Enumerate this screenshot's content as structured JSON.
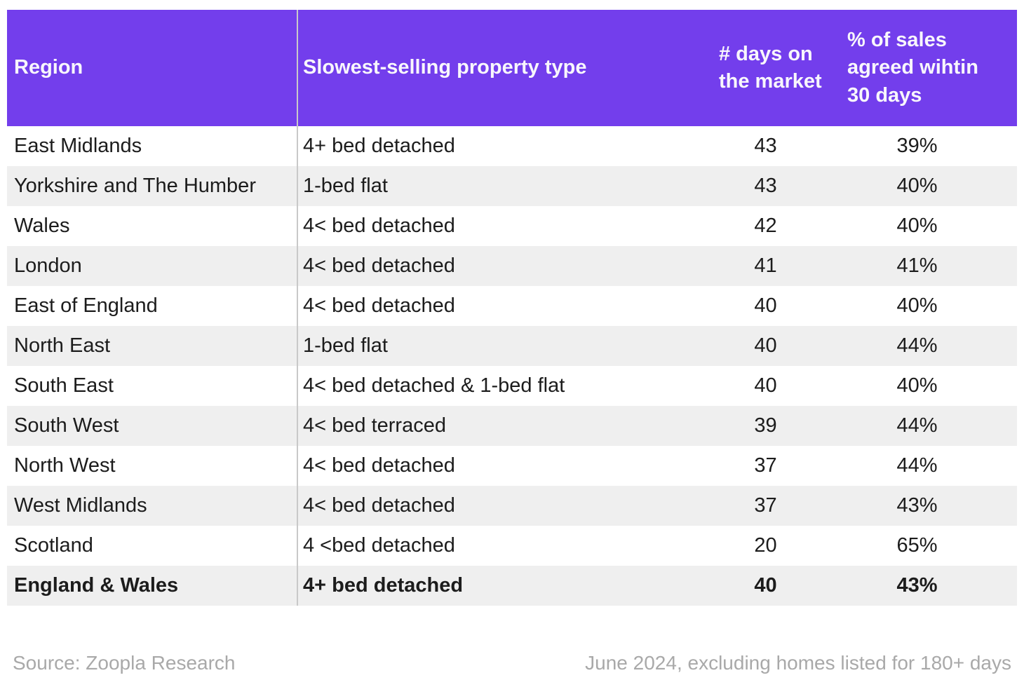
{
  "chart_data": {
    "type": "table",
    "columns": [
      "Region",
      "Slowest-selling property type",
      "# days on the market",
      "% of sales agreed wihtin 30 days"
    ],
    "rows": [
      [
        "East Midlands",
        "4+ bed detached",
        43,
        "39%"
      ],
      [
        "Yorkshire and The Humber",
        "1-bed flat",
        43,
        "40%"
      ],
      [
        "Wales",
        "4< bed detached",
        42,
        "40%"
      ],
      [
        "London",
        "4< bed detached",
        41,
        "41%"
      ],
      [
        "East of England",
        "4< bed detached",
        40,
        "40%"
      ],
      [
        "North East",
        "1-bed flat",
        40,
        "44%"
      ],
      [
        "South East",
        "4< bed detached & 1-bed flat",
        40,
        "40%"
      ],
      [
        "South West",
        "4< bed terraced",
        39,
        "44%"
      ],
      [
        "North West",
        "4< bed detached",
        37,
        "44%"
      ],
      [
        "West Midlands",
        "4< bed detached",
        37,
        "43%"
      ],
      [
        "Scotland",
        "4 <bed detached",
        20,
        "65%"
      ],
      [
        "England & Wales",
        "4+ bed detached",
        40,
        "43%"
      ]
    ],
    "bold_rows": [
      11
    ],
    "source": "Source: Zoopla Research",
    "note": "June 2024, excluding homes listed for 180+ days"
  },
  "colors": {
    "header_bg": "#733EEC",
    "header_text": "#F8F6FC",
    "row_odd_bg": "#EFEFEF",
    "row_even_bg": "#FFFFFF",
    "body_text": "#1C1C1C",
    "footer_text": "#A9A9A9",
    "divider": "#C9C9C9"
  }
}
